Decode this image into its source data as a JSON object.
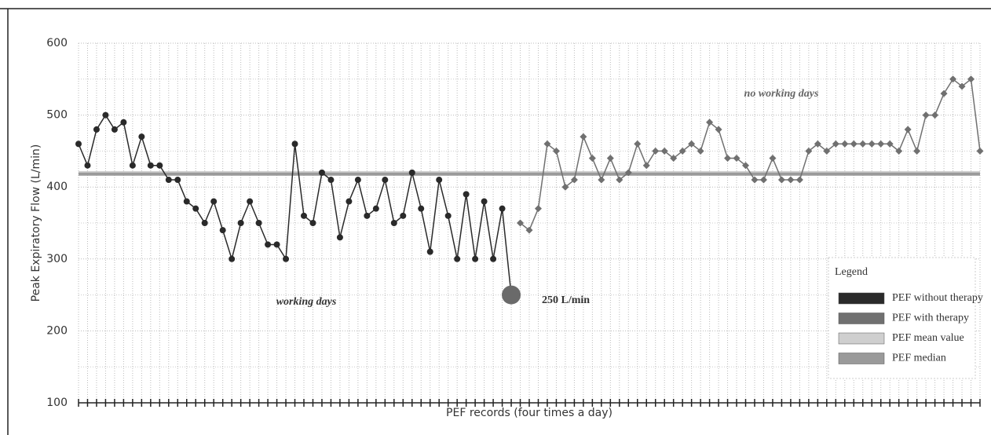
{
  "chart_data": {
    "type": "line",
    "y_label": "Peak Expiratory Flow (L/min)",
    "x_label": "PEF records (four times a day)",
    "ylim": [
      100,
      600
    ],
    "yticks": [
      100,
      200,
      300,
      400,
      500,
      600
    ],
    "xlim": [
      0,
      100
    ],
    "grid": true,
    "series": [
      {
        "name": "PEF without therapy",
        "color": "#2a2a2a",
        "marker": "circle",
        "x": [
          0,
          1,
          2,
          3,
          4,
          5,
          6,
          7,
          8,
          9,
          10,
          11,
          12,
          13,
          14,
          15,
          16,
          17,
          18,
          19,
          20,
          21,
          22,
          23,
          24,
          25,
          26,
          27,
          28,
          29,
          30,
          31,
          32,
          33,
          34,
          35,
          36,
          37,
          38,
          39,
          40,
          41,
          42,
          43,
          44,
          45,
          46,
          47,
          48
        ],
        "values": [
          460,
          430,
          480,
          500,
          480,
          490,
          430,
          470,
          430,
          430,
          410,
          410,
          380,
          370,
          350,
          380,
          340,
          300,
          350,
          380,
          350,
          320,
          320,
          300,
          460,
          360,
          350,
          420,
          410,
          330,
          380,
          410,
          360,
          370,
          410,
          350,
          360,
          420,
          370,
          310,
          410,
          360,
          300,
          390,
          300,
          380,
          300,
          370,
          250
        ]
      },
      {
        "name": "PEF with therapy",
        "color": "#707070",
        "marker": "diamond",
        "x": [
          49,
          50,
          51,
          52,
          53,
          54,
          55,
          56,
          57,
          58,
          59,
          60,
          61,
          62,
          63,
          64,
          65,
          66,
          67,
          68,
          69,
          70,
          71,
          72,
          73,
          74,
          75,
          76,
          77,
          78,
          79,
          80,
          81,
          82,
          83,
          84,
          85,
          86,
          87,
          88,
          89,
          90,
          91,
          92,
          93,
          94,
          95,
          96,
          97,
          98,
          99,
          100
        ],
        "values": [
          350,
          340,
          370,
          460,
          450,
          400,
          410,
          470,
          440,
          410,
          440,
          410,
          420,
          460,
          430,
          450,
          450,
          440,
          450,
          460,
          450,
          490,
          480,
          440,
          440,
          430,
          410,
          410,
          440,
          410,
          410,
          410,
          450,
          460,
          450,
          460,
          460,
          460,
          460,
          460,
          460,
          460,
          450,
          480,
          450,
          500,
          500,
          530,
          550,
          540,
          550,
          450
        ]
      },
      {
        "name": "PEF mean value",
        "color": "#cfcfcf",
        "type": "hline",
        "value": 420
      },
      {
        "name": "PEF median",
        "color": "#9a9a9a",
        "type": "hline",
        "value": 418
      }
    ],
    "legend_title": "Legend",
    "legend": "lower right",
    "annotations": [
      "working days",
      "no working days",
      "250 L/min"
    ]
  }
}
